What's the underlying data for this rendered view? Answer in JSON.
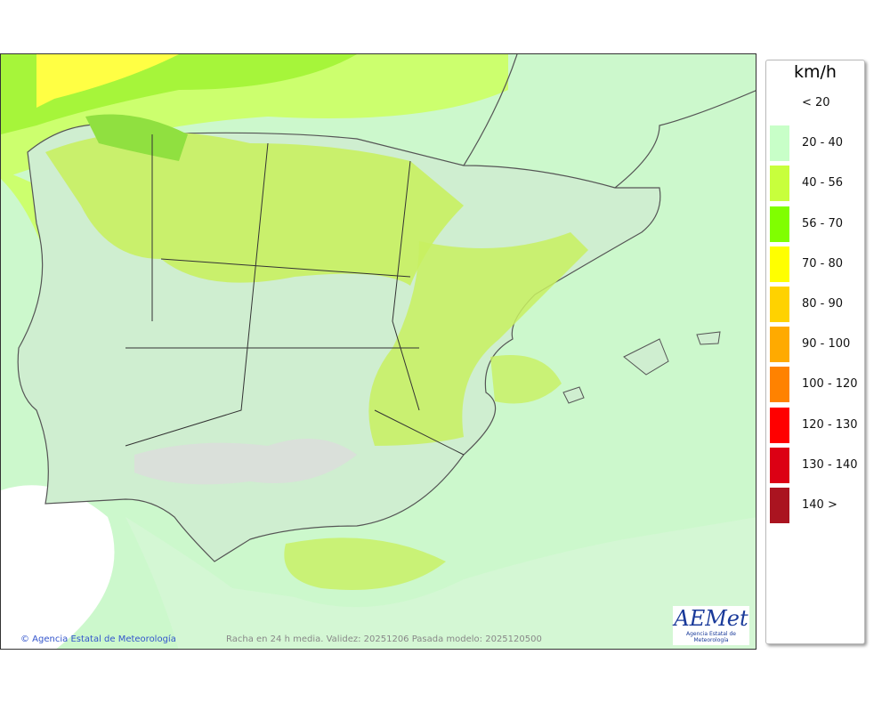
{
  "map": {
    "caption": "Racha en 24 h media. Validez: 20251206 Pasada modelo: 2025120500",
    "credit": "© Agencia Estatal de Meteorología",
    "logo": {
      "mark": "AEMet",
      "subtitle": "Agencia Estatal de Meteorología"
    }
  },
  "legend": {
    "unit": "km/h",
    "classes": [
      {
        "label": "< 20",
        "color": "#ffffff"
      },
      {
        "label": "20 - 40",
        "color": "#c8ffc8"
      },
      {
        "label": "40 - 56",
        "color": "#c8ff3c"
      },
      {
        "label": "56 - 70",
        "color": "#80ff00"
      },
      {
        "label": "70 - 80",
        "color": "#ffff00"
      },
      {
        "label": "80 - 90",
        "color": "#ffd200"
      },
      {
        "label": "90 - 100",
        "color": "#ffaa00"
      },
      {
        "label": "100 - 120",
        "color": "#ff8200"
      },
      {
        "label": "120 - 130",
        "color": "#ff0000"
      },
      {
        "label": "130 - 140",
        "color": "#dc0014"
      },
      {
        "label": "140 >",
        "color": "#aa1420"
      }
    ]
  }
}
